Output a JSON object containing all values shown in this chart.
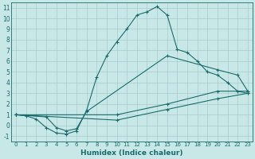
{
  "xlabel": "Humidex (Indice chaleur)",
  "bg_color": "#c8e8e8",
  "line_color": "#1a6b6b",
  "grid_color": "#a8cccc",
  "xlim": [
    -0.5,
    23.5
  ],
  "ylim": [
    -1.5,
    11.5
  ],
  "xticks": [
    0,
    1,
    2,
    3,
    4,
    5,
    6,
    7,
    8,
    9,
    10,
    11,
    12,
    13,
    14,
    15,
    16,
    17,
    18,
    19,
    20,
    21,
    22,
    23
  ],
  "yticks": [
    -1,
    0,
    1,
    2,
    3,
    4,
    5,
    6,
    7,
    8,
    9,
    10,
    11
  ],
  "line1_x": [
    0,
    1,
    2,
    3,
    4,
    5,
    6,
    7,
    8,
    9,
    10,
    11,
    12,
    13,
    14,
    15,
    16,
    17,
    18,
    19,
    20,
    21,
    22,
    23
  ],
  "line1_y": [
    1.0,
    0.9,
    0.6,
    -0.2,
    -0.7,
    -0.8,
    -0.5,
    1.4,
    4.5,
    6.5,
    7.8,
    9.0,
    10.3,
    10.6,
    11.1,
    10.3,
    7.1,
    6.8,
    6.0,
    5.0,
    4.7,
    4.0,
    3.2,
    3.0
  ],
  "line2_x": [
    0,
    3,
    4,
    5,
    6,
    7,
    15,
    20,
    22,
    23
  ],
  "line2_y": [
    1.0,
    0.8,
    -0.2,
    -0.5,
    -0.3,
    1.3,
    6.5,
    5.2,
    4.7,
    3.2
  ],
  "line3_x": [
    0,
    10,
    15,
    20,
    23
  ],
  "line3_y": [
    1.0,
    1.0,
    2.0,
    3.2,
    3.2
  ],
  "line4_x": [
    0,
    10,
    15,
    20,
    23
  ],
  "line4_y": [
    1.0,
    0.5,
    1.5,
    2.5,
    3.0
  ]
}
